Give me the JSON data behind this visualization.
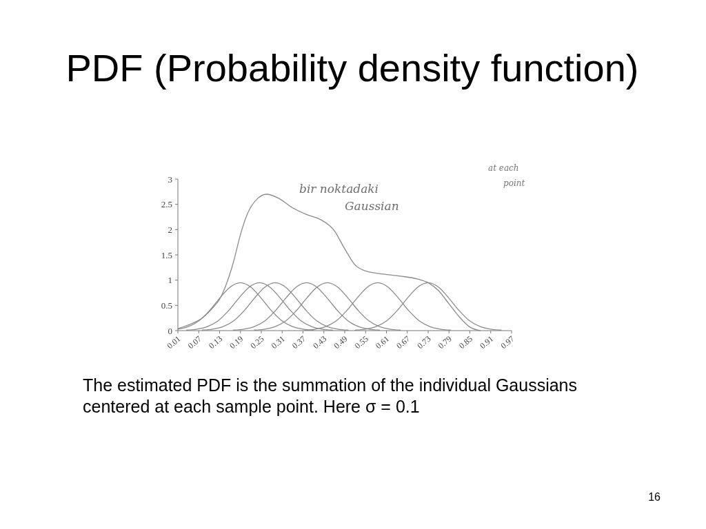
{
  "chart_data": {
    "type": "line",
    "title": "PDF (Probability density function)",
    "annotations": [
      "The estimated PDF is the summation of the individual Gaussians centered at each sample point. Here σ = 0.1",
      "16",
      "bir noktadaki Gaussian",
      "at each point"
    ],
    "xlim": [
      0.01,
      0.97
    ],
    "xticks": [
      0.01,
      0.07,
      0.13,
      0.19,
      0.25,
      0.31,
      0.37,
      0.43,
      0.49,
      0.55,
      0.61,
      0.67,
      0.73,
      0.79,
      0.85,
      0.91,
      0.97
    ],
    "ylim": [
      0,
      3
    ],
    "yticks": [
      0,
      0.5,
      1,
      1.5,
      2,
      2.5,
      3
    ],
    "series": [
      {
        "color": "#8a8a8a",
        "x": [
          0.01,
          0.05,
          0.08,
          0.11,
          0.13,
          0.15,
          0.17,
          0.19,
          0.21,
          0.24,
          0.265,
          0.3,
          0.34,
          0.38,
          0.42,
          0.46,
          0.49,
          0.52,
          0.55,
          0.6,
          0.65,
          0.7,
          0.73,
          0.76,
          0.79,
          0.82,
          0.85,
          0.88
        ],
        "values": [
          0.04,
          0.14,
          0.25,
          0.45,
          0.62,
          0.93,
          1.36,
          1.9,
          2.31,
          2.62,
          2.7,
          2.62,
          2.43,
          2.3,
          2.2,
          1.98,
          1.62,
          1.3,
          1.18,
          1.12,
          1.08,
          1.02,
          0.95,
          0.79,
          0.53,
          0.27,
          0.07,
          0
        ]
      },
      {
        "color": "#8a8a8a",
        "x": [
          0.01,
          0.04,
          0.07,
          0.1,
          0.13,
          0.16,
          0.19,
          0.22,
          0.25,
          0.28,
          0.31,
          0.34,
          0.37,
          0.4
        ],
        "values": [
          0.03,
          0.08,
          0.19,
          0.39,
          0.64,
          0.86,
          0.95,
          0.86,
          0.64,
          0.39,
          0.19,
          0.08,
          0.03,
          0.01
        ]
      },
      {
        "color": "#8a8a8a",
        "x": [
          0.035,
          0.065,
          0.095,
          0.125,
          0.155,
          0.185,
          0.215,
          0.245,
          0.275,
          0.305,
          0.335,
          0.365,
          0.395,
          0.425,
          0.455
        ],
        "values": [
          0.01,
          0.03,
          0.08,
          0.19,
          0.39,
          0.64,
          0.86,
          0.95,
          0.86,
          0.64,
          0.39,
          0.19,
          0.08,
          0.03,
          0.01
        ]
      },
      {
        "color": "#8a8a8a",
        "x": [
          0.08,
          0.11,
          0.14,
          0.17,
          0.2,
          0.23,
          0.26,
          0.29,
          0.32,
          0.35,
          0.38,
          0.41,
          0.44,
          0.47,
          0.5
        ],
        "values": [
          0.01,
          0.03,
          0.08,
          0.19,
          0.39,
          0.64,
          0.86,
          0.95,
          0.86,
          0.64,
          0.39,
          0.19,
          0.08,
          0.03,
          0.01
        ]
      },
      {
        "color": "#8a8a8a",
        "x": [
          0.17,
          0.2,
          0.23,
          0.26,
          0.29,
          0.32,
          0.35,
          0.38,
          0.41,
          0.44,
          0.47,
          0.5,
          0.53,
          0.56,
          0.59
        ],
        "values": [
          0.01,
          0.03,
          0.08,
          0.19,
          0.39,
          0.64,
          0.86,
          0.95,
          0.86,
          0.64,
          0.39,
          0.19,
          0.08,
          0.03,
          0.01
        ]
      },
      {
        "color": "#8a8a8a",
        "x": [
          0.23,
          0.26,
          0.29,
          0.32,
          0.35,
          0.38,
          0.41,
          0.44,
          0.47,
          0.5,
          0.53,
          0.56,
          0.59,
          0.62,
          0.65
        ],
        "values": [
          0.01,
          0.03,
          0.08,
          0.19,
          0.39,
          0.64,
          0.86,
          0.95,
          0.86,
          0.64,
          0.39,
          0.19,
          0.08,
          0.03,
          0.01
        ]
      },
      {
        "color": "#8a8a8a",
        "x": [
          0.375,
          0.405,
          0.435,
          0.465,
          0.495,
          0.525,
          0.555,
          0.585,
          0.615,
          0.645,
          0.675,
          0.705,
          0.735,
          0.765,
          0.795
        ],
        "values": [
          0.01,
          0.03,
          0.08,
          0.19,
          0.39,
          0.64,
          0.86,
          0.95,
          0.86,
          0.64,
          0.39,
          0.19,
          0.08,
          0.03,
          0.01
        ]
      },
      {
        "color": "#8a8a8a",
        "x": [
          0.52,
          0.55,
          0.58,
          0.61,
          0.64,
          0.67,
          0.7,
          0.73,
          0.76,
          0.79,
          0.82,
          0.85,
          0.88,
          0.91,
          0.94
        ],
        "values": [
          0.01,
          0.03,
          0.08,
          0.19,
          0.39,
          0.64,
          0.86,
          0.95,
          0.86,
          0.64,
          0.39,
          0.19,
          0.08,
          0.03,
          0.01
        ]
      }
    ]
  }
}
